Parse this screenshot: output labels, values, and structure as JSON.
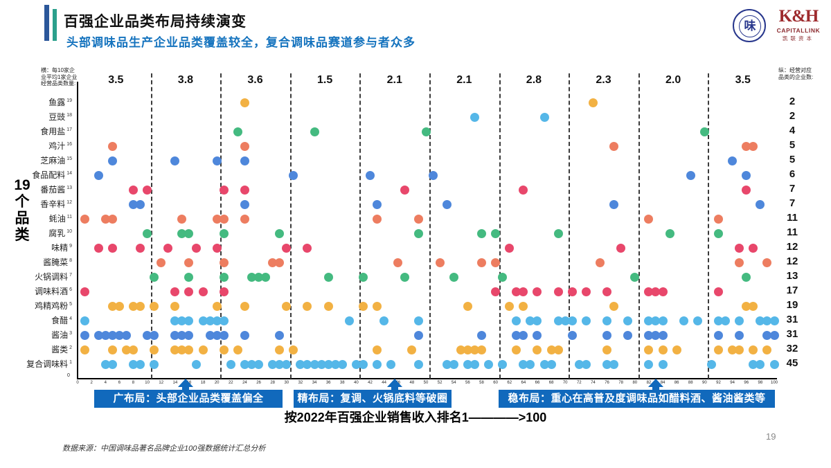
{
  "header": {
    "title": "百强企业品类布局持续演变",
    "subtitle": "头部调味品生产企业品类覆盖较全，复合调味品赛道参与者众多"
  },
  "logos": {
    "association_char": "味",
    "capitallink_monogram": "K&H",
    "capitallink_name": "CAPITALLINK",
    "capitallink_cn": "凯联资本"
  },
  "colors": {
    "salmon": "#ED7D60",
    "red": "#E8476B",
    "blue": "#4E87DB",
    "green": "#44BA80",
    "yellow": "#F2B143",
    "lightblue": "#55B7E8",
    "annotation_blue": "#1169BC"
  },
  "chart_data": {
    "type": "scatter",
    "left_axis_note": "横：每10家企\n业平均1家企业\n经营品类数量:",
    "right_axis_note": "纵：经营对应\n品类的企业数:",
    "side_label": "19\n个\n品\n类",
    "x_axis": {
      "label": "按2022年百强企业销售收入排名1————>100",
      "min": 0,
      "max": 100,
      "tick_step": 2,
      "origin_label": "0"
    },
    "decile_averages": [
      3.5,
      3.8,
      3.6,
      1.5,
      2.1,
      2.1,
      2.8,
      2.3,
      2.0,
      3.5
    ],
    "categories": [
      {
        "name": "鱼露",
        "index": 19,
        "count": 2,
        "color": "yellow",
        "ranks": [
          24,
          74
        ]
      },
      {
        "name": "豆豉",
        "index": 18,
        "count": 2,
        "color": "lightblue",
        "ranks": [
          57,
          67
        ]
      },
      {
        "name": "食用盐",
        "index": 17,
        "count": 4,
        "color": "green",
        "ranks": [
          23,
          34,
          50,
          90
        ]
      },
      {
        "name": "鸡汁",
        "index": 16,
        "count": 5,
        "color": "salmon",
        "ranks": [
          5,
          24,
          77,
          96,
          97
        ]
      },
      {
        "name": "芝麻油",
        "index": 15,
        "count": 5,
        "color": "blue",
        "ranks": [
          5,
          14,
          20,
          24,
          94
        ]
      },
      {
        "name": "食品配料",
        "index": 14,
        "count": 6,
        "color": "blue",
        "ranks": [
          3,
          31,
          42,
          51,
          88,
          96
        ]
      },
      {
        "name": "番茄酱",
        "index": 13,
        "count": 7,
        "color": "red",
        "ranks": [
          8,
          10,
          21,
          24,
          47,
          64,
          96
        ]
      },
      {
        "name": "香辛料",
        "index": 12,
        "count": 7,
        "color": "blue",
        "ranks": [
          8,
          9,
          24,
          43,
          53,
          77,
          98
        ]
      },
      {
        "name": "蚝油",
        "index": 11,
        "count": 11,
        "color": "salmon",
        "ranks": [
          1,
          4,
          5,
          15,
          20,
          21,
          24,
          43,
          49,
          82,
          92
        ]
      },
      {
        "name": "腐乳",
        "index": 10,
        "count": 11,
        "color": "green",
        "ranks": [
          10,
          15,
          16,
          21,
          29,
          49,
          58,
          60,
          69,
          85,
          92
        ]
      },
      {
        "name": "味精",
        "index": 9,
        "count": 12,
        "color": "red",
        "ranks": [
          3,
          5,
          9,
          13,
          17,
          20,
          30,
          33,
          62,
          78,
          95,
          97
        ]
      },
      {
        "name": "酱腌菜",
        "index": 8,
        "count": 12,
        "color": "salmon",
        "ranks": [
          12,
          16,
          21,
          28,
          29,
          46,
          52,
          58,
          60,
          75,
          95,
          99
        ]
      },
      {
        "name": "火锅调料",
        "index": 7,
        "count": 13,
        "color": "green",
        "ranks": [
          11,
          16,
          21,
          25,
          26,
          27,
          36,
          41,
          47,
          54,
          61,
          80,
          96
        ]
      },
      {
        "name": "调味料酒",
        "index": 6,
        "count": 17,
        "color": "red",
        "ranks": [
          1,
          14,
          16,
          18,
          21,
          60,
          63,
          64,
          66,
          69,
          71,
          73,
          76,
          82,
          83,
          84,
          92
        ]
      },
      {
        "name": "鸡精鸡粉",
        "index": 5,
        "count": 19,
        "color": "yellow",
        "ranks": [
          5,
          6,
          8,
          9,
          11,
          14,
          20,
          24,
          30,
          33,
          36,
          41,
          43,
          56,
          62,
          64,
          77,
          96,
          97
        ]
      },
      {
        "name": "食醋",
        "index": 4,
        "count": 31,
        "color": "lightblue",
        "ranks": [
          1,
          14,
          15,
          16,
          18,
          19,
          20,
          21,
          39,
          44,
          49,
          63,
          65,
          66,
          69,
          70,
          71,
          73,
          76,
          79,
          82,
          83,
          84,
          87,
          89,
          92,
          93,
          95,
          98,
          99,
          100
        ]
      },
      {
        "name": "酱油",
        "index": 3,
        "count": 31,
        "color": "blue",
        "ranks": [
          1,
          3,
          4,
          5,
          6,
          7,
          10,
          11,
          14,
          15,
          16,
          19,
          20,
          21,
          24,
          29,
          49,
          58,
          63,
          64,
          66,
          71,
          76,
          79,
          82,
          83,
          84,
          92,
          95,
          99,
          100
        ]
      },
      {
        "name": "酱类",
        "index": 2,
        "count": 32,
        "color": "yellow",
        "ranks": [
          1,
          5,
          7,
          8,
          11,
          14,
          15,
          16,
          18,
          21,
          23,
          29,
          31,
          43,
          48,
          55,
          56,
          57,
          58,
          63,
          66,
          68,
          69,
          76,
          82,
          84,
          86,
          92,
          94,
          95,
          97,
          99
        ]
      },
      {
        "name": "复合调味料",
        "index": 1,
        "count": 45,
        "color": "lightblue",
        "ranks": [
          4,
          5,
          8,
          9,
          11,
          17,
          22,
          24,
          25,
          26,
          28,
          29,
          30,
          32,
          33,
          34,
          35,
          36,
          37,
          38,
          40,
          41,
          43,
          45,
          49,
          53,
          54,
          56,
          57,
          59,
          61,
          64,
          65,
          67,
          68,
          72,
          73,
          76,
          77,
          82,
          84,
          91,
          97,
          98,
          100
        ]
      }
    ]
  },
  "annotations": {
    "items": [
      {
        "text": "广布局：头部企业品类覆盖偏全",
        "arrow_rank": 15.5
      },
      {
        "text": "精布局：复调、火锅底料等破圈",
        "arrow_rank": 45.5
      },
      {
        "text": "稳布局：重心在高普及度调味品如醋料酒、酱油酱类等",
        "arrow_rank": 83
      }
    ]
  },
  "footer": {
    "source": "数据来源：中国调味品著名品牌企业100强数据统计汇总分析",
    "page_number": "19"
  }
}
